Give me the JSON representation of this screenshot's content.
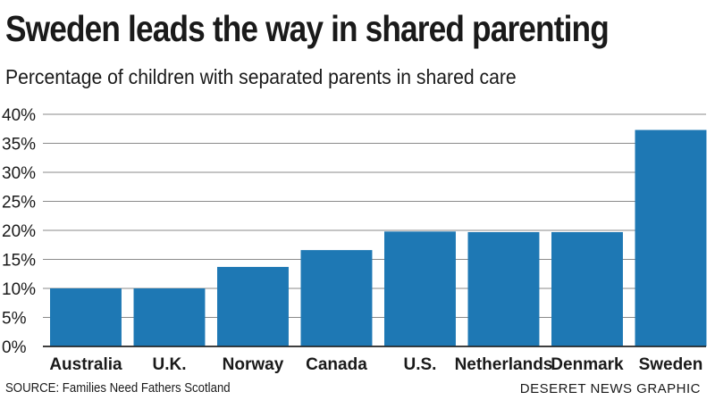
{
  "chart_data": {
    "type": "bar",
    "title": "Sweden leads the way in shared parenting",
    "subtitle": "Percentage of children with separated parents in shared care",
    "categories": [
      "Australia",
      "U.K.",
      "Norway",
      "Canada",
      "U.S.",
      "Netherlands",
      "Denmark",
      "Sweden"
    ],
    "values": [
      10,
      10,
      13.7,
      16.6,
      19.8,
      19.7,
      19.7,
      37.3
    ],
    "ylim": [
      0,
      40
    ],
    "yticks": [
      0,
      5,
      10,
      15,
      20,
      25,
      30,
      35,
      40
    ],
    "ytick_labels": [
      "0%",
      "5%",
      "10%",
      "15%",
      "20%",
      "25%",
      "30%",
      "35%",
      "40%"
    ],
    "xlabel": "",
    "ylabel": "",
    "grid": true,
    "bar_color": "#1e78b4"
  },
  "source": "SOURCE: Families Need Fathers Scotland",
  "credit": "DESERET NEWS GRAPHIC"
}
